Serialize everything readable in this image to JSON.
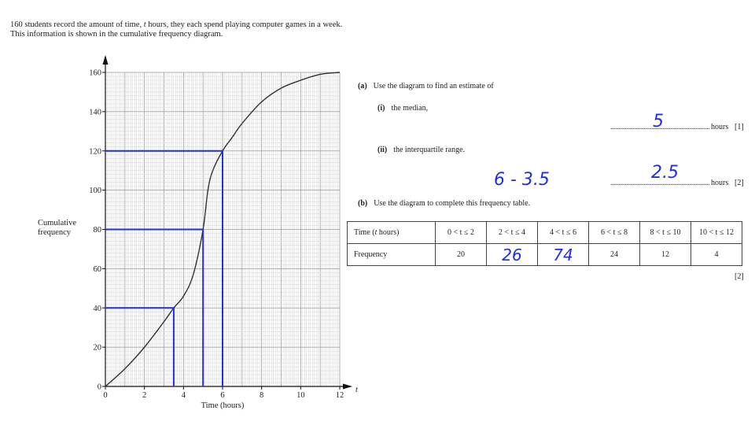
{
  "intro": {
    "line1_a": "160 students record the amount of time, ",
    "line1_var": "t",
    "line1_b": " hours, they each spend playing computer games in a week.",
    "line2": "This information is shown in the cumulative frequency diagram."
  },
  "chart_data": {
    "type": "line",
    "xlabel": "Time (hours)",
    "x_axis_var": "t",
    "ylabel_line1": "Cumulative",
    "ylabel_line2": "frequency",
    "xlim": [
      0,
      12
    ],
    "ylim": [
      0,
      160
    ],
    "xticks": [
      0,
      2,
      4,
      6,
      8,
      10,
      12
    ],
    "yticks": [
      0,
      20,
      40,
      60,
      80,
      100,
      120,
      140,
      160
    ],
    "grid": true,
    "series": [
      {
        "x": [
          0,
          1,
          2,
          3,
          3.5,
          4,
          4.5,
          5,
          5.25,
          5.5,
          6,
          6.5,
          7,
          8,
          9,
          10,
          11,
          12
        ],
        "y": [
          0,
          9,
          20,
          33,
          40,
          46,
          57,
          80,
          100,
          110,
          120,
          127,
          134,
          145,
          152,
          156,
          159,
          160
        ]
      }
    ],
    "reading_lines": [
      {
        "y": 40,
        "x": 3.5
      },
      {
        "y": 80,
        "x": 5
      },
      {
        "y": 120,
        "x": 6
      }
    ],
    "reading_line_color": "#1f2fe0"
  },
  "questions": {
    "a_label": "(a)",
    "a_text": "Use the diagram to find an estimate of",
    "i_label": "(i)",
    "i_text": "the median,",
    "i_answer": "5",
    "i_unit": "hours",
    "i_marks": "[1]",
    "ii_label": "(ii)",
    "ii_text": "the interquartile range.",
    "ii_working": "6 - 3.5",
    "ii_answer": "2.5",
    "ii_unit": "hours",
    "ii_marks": "[2]",
    "b_label": "(b)",
    "b_text": "Use the diagram to complete this frequency table.",
    "b_marks": "[2]",
    "dots": "......................................................................................"
  },
  "table": {
    "time_header": "Time  (",
    "time_header_var": "t",
    "time_header_end": " hours)",
    "freq_header": "Frequency",
    "intervals": [
      "0 < t ≤ 2",
      "2 < t ≤ 4",
      "4 < t ≤ 6",
      "6 < t ≤ 8",
      "8 < t ≤ 10",
      "10 < t ≤ 12"
    ],
    "frequencies": [
      "20",
      "26",
      "74",
      "24",
      "12",
      "4"
    ],
    "handwritten": [
      false,
      true,
      true,
      false,
      false,
      false
    ]
  }
}
